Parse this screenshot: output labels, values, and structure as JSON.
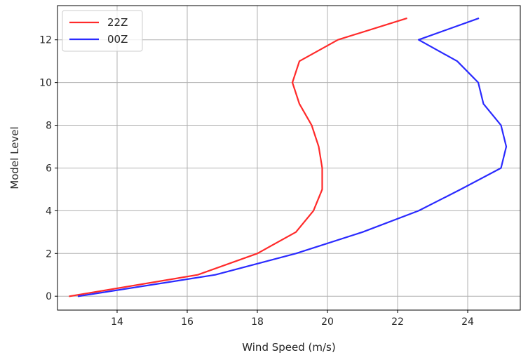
{
  "chart_data": {
    "type": "line",
    "title": "",
    "xlabel": "Wind Speed (m/s)",
    "ylabel": "Model Level",
    "xlim": [
      12.3,
      25.5
    ],
    "ylim": [
      -0.65,
      13.6
    ],
    "xticks": [
      14,
      16,
      18,
      20,
      22,
      24
    ],
    "yticks": [
      0,
      2,
      4,
      6,
      8,
      10,
      12
    ],
    "grid": true,
    "legend_position": "upper-left",
    "series": [
      {
        "name": "22Z",
        "color": "#ff2a2a",
        "x": [
          12.65,
          16.3,
          18.0,
          19.1,
          19.6,
          19.85,
          19.85,
          19.75,
          19.55,
          19.2,
          19.0,
          19.2,
          20.3,
          22.25
        ],
        "y": [
          0,
          1,
          2,
          3,
          4,
          5,
          6,
          7,
          8,
          9,
          10,
          11,
          12,
          13
        ]
      },
      {
        "name": "00Z",
        "color": "#2a2aff",
        "x": [
          12.9,
          16.8,
          19.1,
          21.0,
          22.6,
          23.8,
          24.95,
          25.1,
          24.95,
          24.45,
          24.3,
          23.7,
          22.6,
          24.3
        ],
        "y": [
          0,
          1,
          2,
          3,
          4,
          5,
          6,
          7,
          8,
          9,
          10,
          11,
          12,
          13
        ]
      }
    ]
  }
}
